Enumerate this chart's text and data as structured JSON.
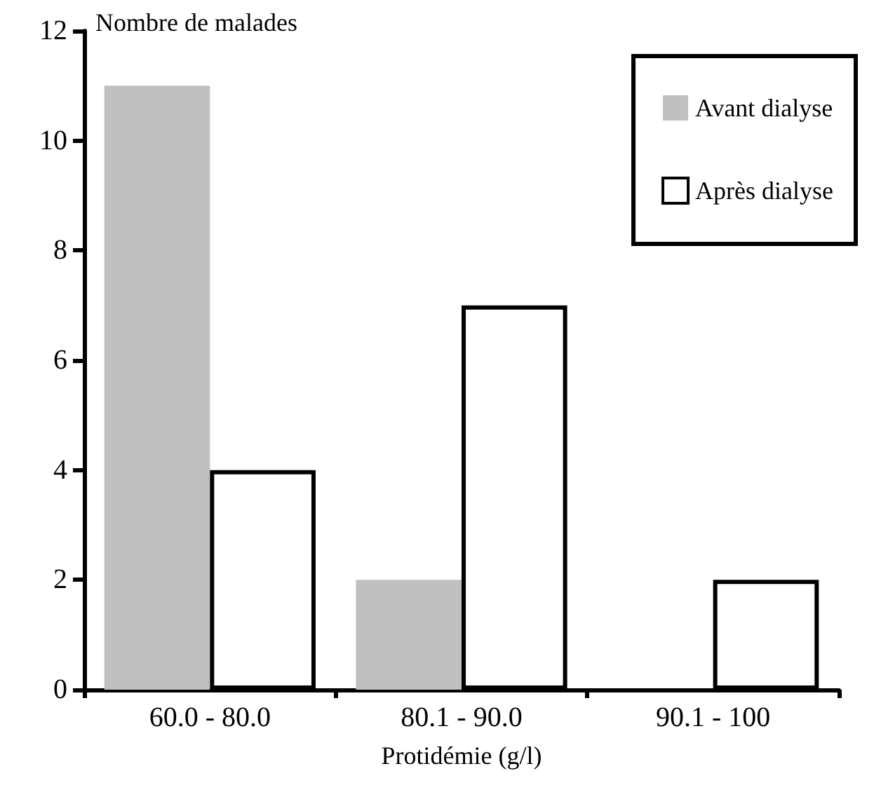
{
  "chart_data": {
    "type": "bar",
    "ylabel": "Nombre de malades",
    "xlabel": "Protidémie (g/l)",
    "categories": [
      "60.0 - 80.0",
      "80.1 - 90.0",
      "90.1 - 100"
    ],
    "series": [
      {
        "name": "Avant dialyse",
        "color": "#c0c0c0",
        "values": [
          11,
          2,
          0
        ]
      },
      {
        "name": "Après dialyse",
        "color": "#ffffff",
        "values": [
          4,
          7,
          2
        ]
      }
    ],
    "ylim": [
      0,
      12
    ],
    "yticks": [
      0,
      2,
      4,
      6,
      8,
      10,
      12
    ],
    "grid": false,
    "legend": "top right"
  }
}
